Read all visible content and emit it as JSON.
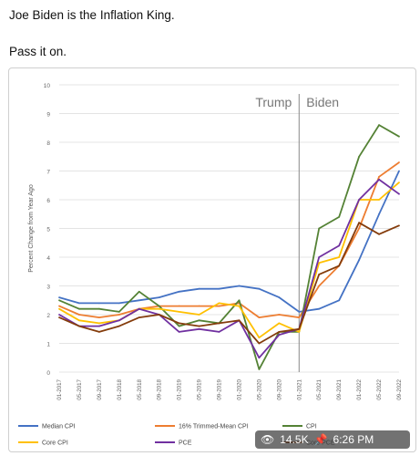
{
  "post": {
    "line1": "Joe Biden is the Inflation King.",
    "line2": "Pass it on."
  },
  "overlay": {
    "views_icon": "eye-icon",
    "views": "14.5K",
    "pin_icon": "pin-icon",
    "time": "6:26 PM"
  },
  "chart_data": {
    "type": "line",
    "title": "",
    "xlabel": "",
    "ylabel": "Percent Change from Year Ago",
    "ylim": [
      0,
      10
    ],
    "yticks": [
      "0",
      "1",
      "2",
      "3",
      "4",
      "5",
      "6",
      "7",
      "8",
      "9",
      "10"
    ],
    "x": [
      "01-2017",
      "05-2017",
      "09-2017",
      "01-2018",
      "05-2018",
      "09-2018",
      "01-2019",
      "05-2019",
      "09-2019",
      "01-2020",
      "05-2020",
      "09-2020",
      "01-2021",
      "05-2021",
      "09-2021",
      "01-2022",
      "05-2022",
      "09-2022"
    ],
    "annotations": [
      {
        "text": "Trump",
        "at": "01-2021",
        "side": "left"
      },
      {
        "text": "Biden",
        "at": "01-2021",
        "side": "right"
      }
    ],
    "divider_at": "01-2021",
    "series": [
      {
        "name": "Median CPI",
        "color": "#4472c4",
        "values": [
          2.6,
          2.4,
          2.4,
          2.4,
          2.5,
          2.6,
          2.8,
          2.9,
          2.9,
          3.0,
          2.9,
          2.6,
          2.1,
          2.2,
          2.5,
          3.9,
          5.5,
          7.0
        ]
      },
      {
        "name": "16% Trimmed-Mean CPI",
        "color": "#ed7d31",
        "values": [
          2.3,
          2.0,
          1.9,
          2.0,
          2.2,
          2.3,
          2.3,
          2.3,
          2.3,
          2.4,
          1.9,
          2.0,
          1.9,
          3.0,
          3.7,
          5.0,
          6.8,
          7.3
        ]
      },
      {
        "name": "CPI",
        "color": "#548235",
        "values": [
          2.5,
          2.2,
          2.2,
          2.1,
          2.8,
          2.3,
          1.6,
          1.8,
          1.7,
          2.5,
          0.1,
          1.4,
          1.4,
          5.0,
          5.4,
          7.5,
          8.6,
          8.2
        ]
      },
      {
        "name": "Core CPI",
        "color": "#ffc000",
        "values": [
          2.2,
          1.8,
          1.7,
          1.8,
          2.2,
          2.2,
          2.1,
          2.0,
          2.4,
          2.3,
          1.2,
          1.7,
          1.4,
          3.8,
          4.0,
          6.0,
          6.0,
          6.6
        ]
      },
      {
        "name": "PCE",
        "color": "#7030a0",
        "values": [
          2.0,
          1.6,
          1.6,
          1.8,
          2.2,
          2.0,
          1.4,
          1.5,
          1.4,
          1.8,
          0.5,
          1.3,
          1.5,
          4.0,
          4.4,
          6.0,
          6.7,
          6.2
        ]
      },
      {
        "name": "Core PCE",
        "color": "#843c0c",
        "values": [
          1.9,
          1.6,
          1.4,
          1.6,
          1.9,
          2.0,
          1.7,
          1.6,
          1.7,
          1.8,
          1.0,
          1.4,
          1.5,
          3.4,
          3.7,
          5.2,
          4.8,
          5.1
        ]
      }
    ]
  }
}
